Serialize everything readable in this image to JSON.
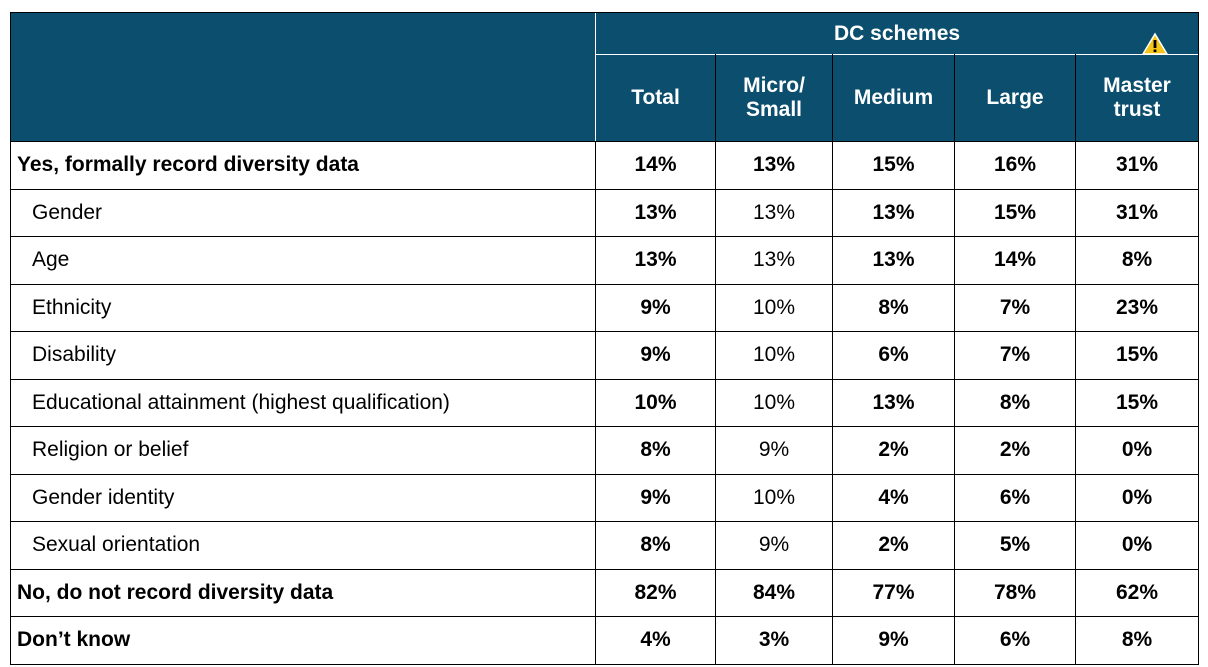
{
  "header": {
    "group": "DC schemes",
    "columns": [
      "Total",
      "Micro/\nSmall",
      "Medium",
      "Large",
      "Master\ntrust"
    ]
  },
  "table": {
    "rows": [
      [
        "Yes, formally record diversity data",
        "14%",
        "13%",
        "15%",
        "16%",
        "31%"
      ],
      [
        "Gender",
        "13%",
        "13%",
        "13%",
        "15%",
        "31%"
      ],
      [
        "Age",
        "13%",
        "13%",
        "13%",
        "14%",
        "8%"
      ],
      [
        "Ethnicity",
        "9%",
        "10%",
        "8%",
        "7%",
        "23%"
      ],
      [
        "Disability",
        "9%",
        "10%",
        "6%",
        "7%",
        "15%"
      ],
      [
        "Educational attainment (highest qualification)",
        "10%",
        "10%",
        "13%",
        "8%",
        "15%"
      ],
      [
        "Religion or belief",
        "8%",
        "9%",
        "2%",
        "2%",
        "0%"
      ],
      [
        "Gender identity",
        "9%",
        "10%",
        "4%",
        "6%",
        "0%"
      ],
      [
        "Sexual orientation",
        "8%",
        "9%",
        "2%",
        "5%",
        "0%"
      ],
      [
        "No, do not record diversity data",
        "82%",
        "84%",
        "77%",
        "78%",
        "62%"
      ],
      [
        "Don’t know",
        "4%",
        "3%",
        "9%",
        "6%",
        "8%"
      ]
    ]
  }
}
